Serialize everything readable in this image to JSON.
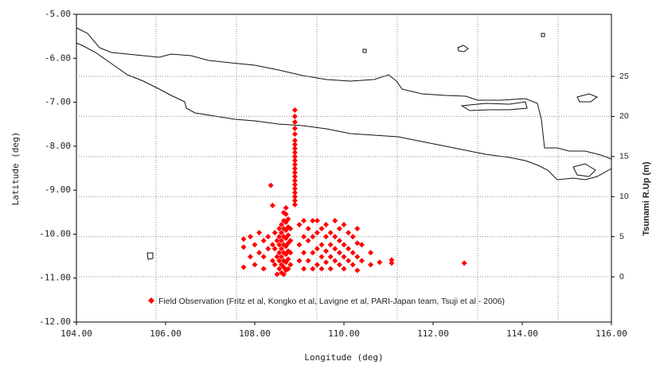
{
  "chart_data": {
    "type": "scatter",
    "xlabel": "Longitude (deg)",
    "ylabel": "Latitude (deg)",
    "y2label": "Tsunami R.Up (m)",
    "xlim": [
      104,
      116
    ],
    "xticks": [
      {
        "value": 104,
        "label": "104.00"
      },
      {
        "value": 106,
        "label": "106.00"
      },
      {
        "value": 108,
        "label": "108.00"
      },
      {
        "value": 110,
        "label": "110.00"
      },
      {
        "value": 112,
        "label": "112.00"
      },
      {
        "value": 114,
        "label": "114.00"
      },
      {
        "value": 116,
        "label": "116.00"
      }
    ],
    "ylim": [
      -12,
      -5
    ],
    "yticks": [
      {
        "value": -5,
        "label": "-5.00"
      },
      {
        "value": -6,
        "label": "-6.00"
      },
      {
        "value": -7,
        "label": "-7.00"
      },
      {
        "value": -8,
        "label": "-8.00"
      },
      {
        "value": -9,
        "label": "-9.00"
      },
      {
        "value": -10,
        "label": "-10.00"
      },
      {
        "value": -11,
        "label": "-11.00"
      },
      {
        "value": -12,
        "label": "-12.00"
      }
    ],
    "y2lim": [
      -5.65,
      32.74
    ],
    "y2ticks": [
      0,
      5,
      10,
      15,
      20,
      25
    ],
    "grid": true,
    "legend": "bottom",
    "series": [
      {
        "name": "Field Observation (Fritz et al, Kongko et al, Lavigne et al, PARI-Japan team, Tsuji et al - 2006)",
        "color": "#ff0000",
        "axis": "y2",
        "x": [
          108.9,
          108.9,
          108.9,
          108.9,
          108.9,
          108.9,
          108.9,
          108.9,
          108.9,
          108.9,
          108.9,
          108.9,
          108.9,
          108.9,
          108.9,
          108.9,
          108.9,
          108.9,
          108.9,
          108.9,
          108.9,
          108.9,
          108.55,
          108.55,
          108.55,
          108.55,
          108.55,
          108.55,
          108.6,
          108.6,
          108.6,
          108.6,
          108.6,
          108.6,
          108.6,
          108.65,
          108.65,
          108.65,
          108.65,
          108.65,
          108.65,
          108.65,
          108.65,
          108.65,
          108.7,
          108.7,
          108.7,
          108.7,
          108.7,
          108.7,
          108.7,
          108.7,
          108.7,
          108.75,
          108.75,
          108.75,
          108.75,
          108.75,
          108.75,
          108.75,
          108.8,
          108.8,
          108.8,
          108.8,
          108.5,
          108.5,
          108.5,
          108.45,
          108.45,
          108.45,
          108.4,
          108.4,
          108.4,
          108.36,
          108.3,
          108.3,
          108.2,
          108.2,
          108.2,
          108.1,
          108.1,
          108,
          108,
          107.9,
          107.9,
          107.75,
          107.75,
          107.75,
          109,
          109,
          109,
          109.1,
          109.1,
          109.1,
          109.1,
          109.2,
          109.2,
          109.2,
          109.3,
          109.3,
          109.3,
          109.3,
          109.4,
          109.4,
          109.4,
          109.4,
          109.5,
          109.5,
          109.5,
          109.5,
          109.6,
          109.6,
          109.6,
          109.6,
          109.7,
          109.7,
          109.7,
          109.7,
          109.8,
          109.8,
          109.8,
          109.8,
          109.9,
          109.9,
          109.9,
          109.9,
          110,
          110,
          110,
          110,
          110.1,
          110.1,
          110.1,
          110.2,
          110.2,
          110.2,
          110.3,
          110.3,
          110.3,
          110.3,
          110.4,
          110.4,
          110.6,
          110.6,
          110.8,
          111.07,
          111.07,
          112.7
        ],
        "values": [
          20.8,
          20,
          19.3,
          18.5,
          17.8,
          17,
          16.5,
          16,
          15.5,
          15,
          14.5,
          14,
          13.5,
          13,
          12.5,
          12,
          11.5,
          11,
          10.5,
          10,
          9.5,
          9,
          1,
          2,
          3,
          4,
          5,
          6,
          0.5,
          1.5,
          2.5,
          3.5,
          4.5,
          5.5,
          6.5,
          0.3,
          1.2,
          2,
          3,
          4,
          5,
          6,
          7,
          8,
          0.8,
          1.8,
          2.8,
          3.8,
          4.8,
          5.8,
          6.8,
          7.8,
          8.6,
          1,
          2.2,
          3.2,
          4.2,
          5.2,
          6.2,
          7.2,
          1.5,
          3,
          4.5,
          6,
          0.3,
          2.5,
          4.5,
          1.5,
          3.5,
          5.5,
          8.9,
          4,
          2,
          11.4,
          5,
          3.5,
          4.5,
          2.5,
          1,
          3,
          5.5,
          4,
          1.5,
          2.5,
          5,
          4.7,
          3.7,
          1.2,
          2,
          4,
          6.5,
          1,
          3,
          5,
          7,
          2,
          4.5,
          6,
          1,
          3,
          5,
          7,
          1.5,
          3.5,
          5.5,
          7,
          1,
          2.5,
          4,
          6,
          1.8,
          3.2,
          5,
          6.5,
          1,
          2.5,
          4,
          5.5,
          2,
          3.5,
          5,
          7,
          1.5,
          3,
          4.5,
          6,
          1,
          2.5,
          4,
          6.5,
          2,
          3.5,
          5.5,
          1.5,
          3,
          5,
          0.8,
          2.5,
          4.2,
          6,
          2,
          4,
          1.5,
          3,
          1.8,
          1.7,
          2.1,
          1.7
        ]
      }
    ]
  }
}
